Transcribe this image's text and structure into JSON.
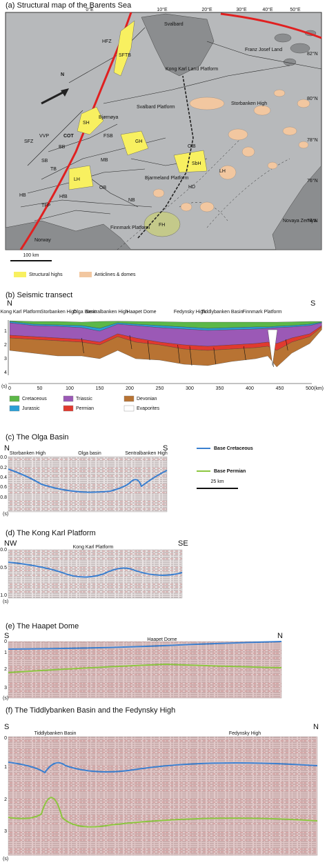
{
  "panel_a": {
    "title": "(a) Structural map of the Barents Sea",
    "lon_labels": [
      "0°E",
      "10°E",
      "20°E",
      "30°E",
      "40°E",
      "50°E"
    ],
    "lat_labels": [
      "82°N",
      "80°N",
      "78°N",
      "76°N",
      "74°N"
    ],
    "labels": [
      "Svalbard",
      "Franz Josef Land",
      "Kong Karl Land Platform",
      "Storbanken High",
      "Svalbard Platform",
      "Bjørnøya",
      "SH",
      "GH",
      "SbH",
      "LH",
      "FSB",
      "MB",
      "BB",
      "TB",
      "SB",
      "HfB",
      "OB",
      "NB",
      "HD",
      "FH",
      "Bjarmeland Platform",
      "Finnmark Platform",
      "Norway",
      "Novaya Zemlya",
      "COT",
      "N",
      "HFZ",
      "SFZ",
      "VVP",
      "TFP",
      "HB",
      "SFTB",
      "OlB",
      "LH"
    ],
    "scale_bar": "100 km",
    "legend": [
      {
        "label": "Structural highs",
        "color": "#f8f060"
      },
      {
        "label": "Anticlines & domes",
        "color": "#f2c7a0"
      }
    ]
  },
  "panel_b": {
    "title": "(b) Seismic transect",
    "left": "N",
    "right": "S",
    "features": [
      "Kong Karl Platform",
      "Storbanken High",
      "Olga Basin",
      "Sentralbanken High",
      "Haapet Dome",
      "Fedynsky High",
      "Tiddlybanken Basin",
      "Finnmark Platform"
    ],
    "xticks": [
      "0",
      "50",
      "100",
      "150",
      "200",
      "250",
      "300",
      "350",
      "400",
      "450",
      "500"
    ],
    "x_unit": "(km)",
    "yticks": [
      "1",
      "2",
      "3",
      "4"
    ],
    "y_unit": "(s)",
    "legend": [
      {
        "label": "Cretaceous",
        "color": "#5cb848"
      },
      {
        "label": "Triassic",
        "color": "#9b59b6"
      },
      {
        "label": "Devonian",
        "color": "#b87333"
      },
      {
        "label": "Jurassic",
        "color": "#2a9fd6"
      },
      {
        "label": "Permian",
        "color": "#e03a2f"
      },
      {
        "label": "Evaporites",
        "color": "#ffffff"
      }
    ]
  },
  "panel_c": {
    "title": "(c) The Olga Basin",
    "left": "N",
    "right": "S",
    "features": [
      "Storbanken High",
      "Olga basin",
      "Sentralbanken High"
    ],
    "yticks": [
      "0.0",
      "0.2",
      "0.4",
      "0.6",
      "0.8"
    ],
    "y_unit": "(s)",
    "legend": [
      {
        "label": "Base Cretaceous",
        "color": "#3a7fd0"
      },
      {
        "label": "Base Permian",
        "color": "#8cc63f"
      }
    ],
    "scale_bar": "25 km"
  },
  "panel_d": {
    "title": "(d) The Kong Karl Platform",
    "left": "NW",
    "right": "SE",
    "features": [
      "Kong Karl Platform"
    ],
    "yticks": [
      "0.0",
      "0.5",
      "1.0"
    ],
    "y_unit": "(s)"
  },
  "panel_e": {
    "title": "(e) The Haapet Dome",
    "left": "S",
    "right": "N",
    "features": [
      "Haapet Dome"
    ],
    "yticks": [
      "0",
      "1",
      "2",
      "3"
    ],
    "y_unit": "(s)"
  },
  "panel_f": {
    "title": "(f) The Tiddlybanken Basin and the Fedynsky High",
    "left": "S",
    "right": "N",
    "features": [
      "Tiddlybanken Basin",
      "Fedynsky High"
    ],
    "yticks": [
      "0",
      "1",
      "2",
      "3"
    ],
    "y_unit": "(s)"
  }
}
